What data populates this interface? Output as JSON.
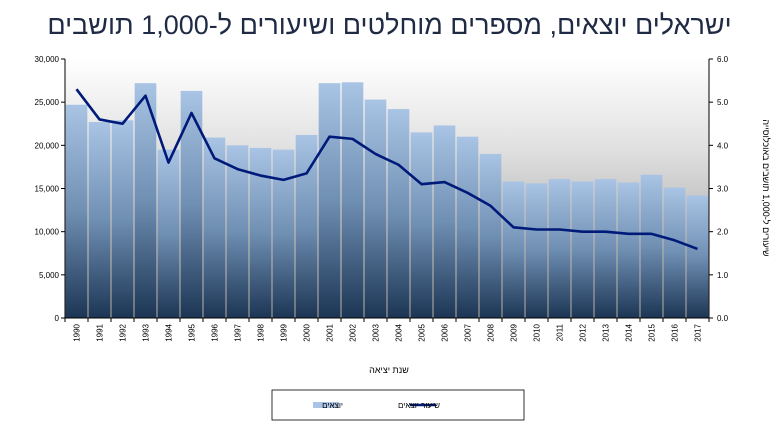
{
  "chart_data": {
    "type": "bar",
    "title": "ישראלים יוצאים, מספרים מוחלטים ושיעורים ל-1,000 תושבים",
    "xlabel": "שנת יציאה",
    "ylabel": "",
    "y2label": "שיעורים ל-1,000 תושבים באוכלוסייה",
    "categories": [
      "1990",
      "1991",
      "1992",
      "1993",
      "1994",
      "1995",
      "1996",
      "1997",
      "1998",
      "1999",
      "2000",
      "2001",
      "2002",
      "2003",
      "2004",
      "2005",
      "2006",
      "2007",
      "2008",
      "2009",
      "2010",
      "2011",
      "2012",
      "2013",
      "2014",
      "2015",
      "2016",
      "2017"
    ],
    "ylim": [
      0,
      30000
    ],
    "y2lim": [
      0,
      6.0
    ],
    "yticks": [
      "0",
      "5,000",
      "10,000",
      "15,000",
      "20,000",
      "25,000",
      "30,000"
    ],
    "y2ticks": [
      "0.0",
      "1.0",
      "2.0",
      "3.0",
      "4.0",
      "5.0",
      "6.0"
    ],
    "series": [
      {
        "name": "יוצאים",
        "kind": "bar",
        "axis": "left",
        "color": "#a9c4e4",
        "values": [
          24700,
          22700,
          22900,
          27200,
          19500,
          26300,
          20900,
          20000,
          19700,
          19500,
          21200,
          27200,
          27300,
          25300,
          24200,
          21500,
          22300,
          21000,
          19000,
          15800,
          15600,
          16100,
          15800,
          16100,
          15700,
          16600,
          15100,
          14200
        ]
      },
      {
        "name": "שיעור יוצאים",
        "kind": "line",
        "axis": "right",
        "color": "#001a7a",
        "values": [
          5.3,
          4.6,
          4.5,
          5.15,
          3.6,
          4.75,
          3.7,
          3.45,
          3.3,
          3.2,
          3.35,
          4.2,
          4.15,
          3.8,
          3.55,
          3.1,
          3.15,
          2.9,
          2.6,
          2.1,
          2.05,
          2.05,
          2.0,
          2.0,
          1.95,
          1.95,
          1.8,
          1.6
        ]
      }
    ],
    "grid": false,
    "legend": "bottom"
  }
}
